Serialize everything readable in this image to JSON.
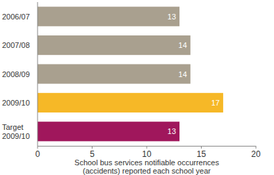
{
  "chart_data": {
    "type": "bar",
    "orientation": "horizontal",
    "categories": [
      "2006/07",
      "2007/08",
      "2008/09",
      "2009/10",
      "Target 2009/10"
    ],
    "values": [
      13,
      14,
      14,
      17,
      13
    ],
    "colors": [
      "#a9a08f",
      "#a9a08f",
      "#a9a08f",
      "#f6b827",
      "#a0175c"
    ],
    "x_label": "School bus services notifiable occurrences (accidents) reported each school year",
    "xlim": [
      0,
      20
    ],
    "xticks": [
      0,
      5,
      10,
      15,
      20
    ],
    "data_labels": true,
    "grid": false
  }
}
